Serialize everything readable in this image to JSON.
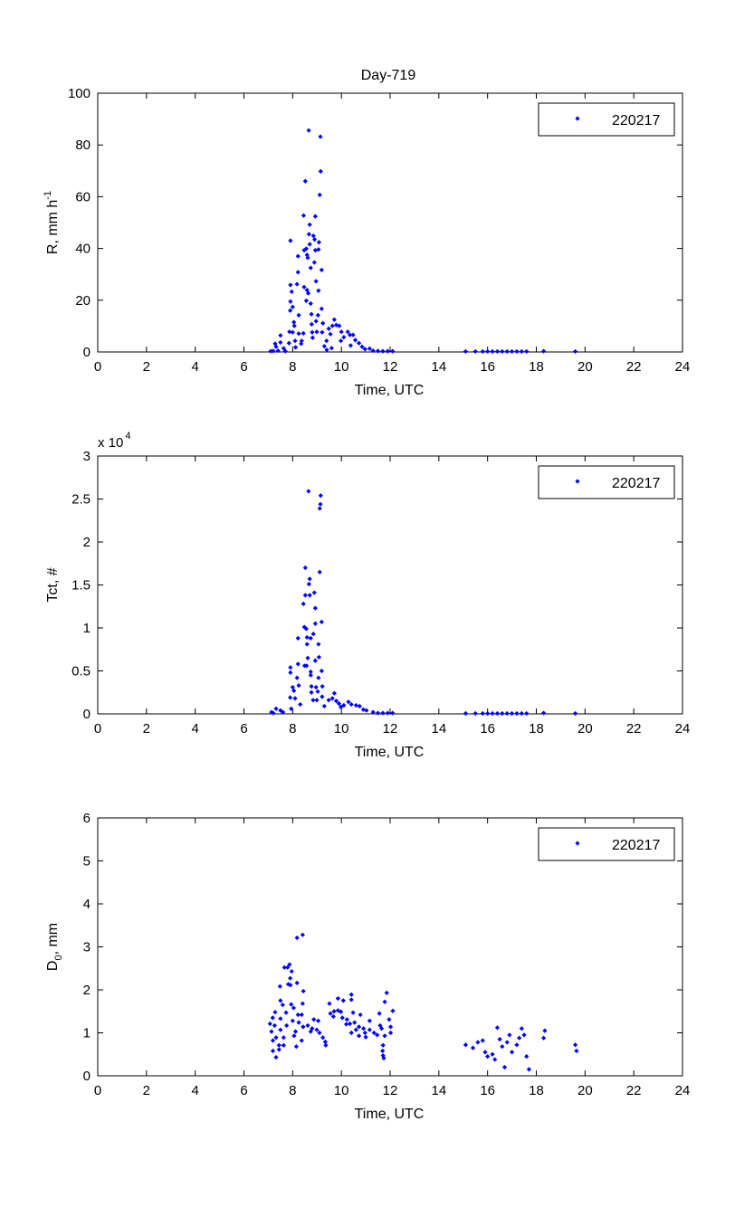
{
  "title": "Day-719",
  "marker_color": "#0000ff",
  "chart_data": [
    {
      "type": "scatter",
      "title": "Day-719",
      "xlabel": "Time, UTC",
      "ylabel": "R, mm h",
      "ylabel_sup": "-1",
      "xlim": [
        0,
        24
      ],
      "ylim": [
        0,
        100
      ],
      "xticks": [
        "0",
        "2",
        "4",
        "6",
        "8",
        "10",
        "12",
        "14",
        "16",
        "18",
        "20",
        "22",
        "24"
      ],
      "yticks": [
        "0",
        "20",
        "40",
        "60",
        "80",
        "100"
      ],
      "legend": {
        "label": "220217",
        "placement": "top-right"
      },
      "points": [
        [
          8.66,
          85.6
        ],
        [
          9.14,
          83.2
        ],
        [
          9.15,
          69.8
        ],
        [
          8.52,
          66
        ],
        [
          9.11,
          60.7
        ],
        [
          8.45,
          52.7
        ],
        [
          8.93,
          52.4
        ],
        [
          8.7,
          49.2
        ],
        [
          8.67,
          45.5
        ],
        [
          8.85,
          44.9
        ],
        [
          8.9,
          43.5
        ],
        [
          9.08,
          42.4
        ],
        [
          7.91,
          43
        ],
        [
          8.56,
          39.9
        ],
        [
          8.47,
          39.3
        ],
        [
          8.7,
          41.6
        ],
        [
          8.93,
          39.3
        ],
        [
          9.06,
          39.6
        ],
        [
          8.59,
          37.5
        ],
        [
          8.62,
          36.4
        ],
        [
          8.22,
          37
        ],
        [
          8.89,
          34.6
        ],
        [
          8.74,
          32.5
        ],
        [
          9.19,
          31.7
        ],
        [
          8.22,
          30.8
        ],
        [
          8.96,
          27.3
        ],
        [
          7.91,
          25.9
        ],
        [
          8.18,
          26.2
        ],
        [
          8.47,
          25.1
        ],
        [
          8.59,
          23.9
        ],
        [
          7.96,
          23.3
        ],
        [
          9.06,
          23.7
        ],
        [
          8.64,
          22.7
        ],
        [
          7.91,
          19.5
        ],
        [
          8.56,
          19.8
        ],
        [
          8,
          17.4
        ],
        [
          8.74,
          18.7
        ],
        [
          7.9,
          16
        ],
        [
          9.19,
          16.7
        ],
        [
          8.25,
          14.2
        ],
        [
          8.77,
          14.6
        ],
        [
          9.04,
          14.2
        ],
        [
          8.96,
          11.9
        ],
        [
          8.05,
          11.5
        ],
        [
          8.07,
          10.1
        ],
        [
          8.78,
          10.7
        ],
        [
          9.24,
          11.1
        ],
        [
          9.71,
          12.5
        ],
        [
          7.87,
          7.8
        ],
        [
          8,
          7.6
        ],
        [
          8.25,
          7.1
        ],
        [
          8.44,
          7.2
        ],
        [
          8.8,
          7.6
        ],
        [
          8.99,
          7.8
        ],
        [
          9.21,
          7.6
        ],
        [
          9.48,
          9
        ],
        [
          9.63,
          10.1
        ],
        [
          9.79,
          10.4
        ],
        [
          9.91,
          10.1
        ],
        [
          10,
          7.8
        ],
        [
          10.26,
          7.8
        ],
        [
          10.48,
          6.6
        ],
        [
          10.35,
          6.6
        ],
        [
          9.55,
          6.9
        ],
        [
          7.5,
          6.4
        ],
        [
          8.82,
          5.5
        ],
        [
          10.1,
          5.7
        ],
        [
          10.57,
          4.6
        ],
        [
          9.98,
          4.3
        ],
        [
          8.1,
          4.3
        ],
        [
          8.37,
          4.3
        ],
        [
          9.39,
          4.3
        ],
        [
          10.72,
          3.4
        ],
        [
          10.38,
          2.5
        ],
        [
          9.3,
          2.2
        ],
        [
          7.5,
          3.7
        ],
        [
          7.28,
          3.2
        ],
        [
          8.35,
          3.2
        ],
        [
          7.85,
          3.4
        ],
        [
          8.12,
          1.8
        ],
        [
          7.63,
          1.4
        ],
        [
          7.32,
          2
        ],
        [
          10.85,
          2
        ],
        [
          10.97,
          1.1
        ],
        [
          11.16,
          1.3
        ],
        [
          7.1,
          0.3
        ],
        [
          7.2,
          0.4
        ],
        [
          7.4,
          0.5
        ],
        [
          7.7,
          0.3
        ],
        [
          9.4,
          0.8
        ],
        [
          9.6,
          1.5
        ],
        [
          11.3,
          0.5
        ],
        [
          11.5,
          0.4
        ],
        [
          11.7,
          0.3
        ],
        [
          11.9,
          0.3
        ],
        [
          12.1,
          0.3
        ],
        [
          15.1,
          0.2
        ],
        [
          15.5,
          0.2
        ],
        [
          15.8,
          0.2
        ],
        [
          16,
          0.2
        ],
        [
          16.2,
          0.2
        ],
        [
          16.4,
          0.2
        ],
        [
          16.6,
          0.2
        ],
        [
          16.8,
          0.2
        ],
        [
          17,
          0.2
        ],
        [
          17.2,
          0.2
        ],
        [
          17.4,
          0.2
        ],
        [
          17.6,
          0.2
        ],
        [
          18.3,
          0.3
        ],
        [
          19.6,
          0.2
        ]
      ]
    },
    {
      "type": "scatter",
      "xlabel": "Time, UTC",
      "ylabel": "Tct, #",
      "y_multiplier": "x 10",
      "y_multiplier_exp": "4",
      "xlim": [
        0,
        24
      ],
      "ylim": [
        0,
        3
      ],
      "xticks": [
        "0",
        "2",
        "4",
        "6",
        "8",
        "10",
        "12",
        "14",
        "16",
        "18",
        "20",
        "22",
        "24"
      ],
      "yticks": [
        "0",
        "0.5",
        "1",
        "1.5",
        "2",
        "2.5",
        "3"
      ],
      "legend": {
        "label": "220217",
        "placement": "top-right"
      },
      "points": [
        [
          8.65,
          2.59
        ],
        [
          9.15,
          2.54
        ],
        [
          9.14,
          2.44
        ],
        [
          9.11,
          2.39
        ],
        [
          8.52,
          1.7
        ],
        [
          9.11,
          1.65
        ],
        [
          8.7,
          1.57
        ],
        [
          8.67,
          1.51
        ],
        [
          8.52,
          1.38
        ],
        [
          8.7,
          1.38
        ],
        [
          8.89,
          1.41
        ],
        [
          8.44,
          1.28
        ],
        [
          8.93,
          1.23
        ],
        [
          8.48,
          1.01
        ],
        [
          8.56,
          0.99
        ],
        [
          9.19,
          1.07
        ],
        [
          8.93,
          1.05
        ],
        [
          8.22,
          0.88
        ],
        [
          8.59,
          0.89
        ],
        [
          8.74,
          0.88
        ],
        [
          8.85,
          0.93
        ],
        [
          8.59,
          0.81
        ],
        [
          9.06,
          0.81
        ],
        [
          8.62,
          0.65
        ],
        [
          9.08,
          0.66
        ],
        [
          8.93,
          0.62
        ],
        [
          7.91,
          0.54
        ],
        [
          8.22,
          0.58
        ],
        [
          8.49,
          0.56
        ],
        [
          8.57,
          0.56
        ],
        [
          7.91,
          0.48
        ],
        [
          9.19,
          0.5
        ],
        [
          8.74,
          0.49
        ],
        [
          8.74,
          0.45
        ],
        [
          8.18,
          0.42
        ],
        [
          9.06,
          0.42
        ],
        [
          8,
          0.31
        ],
        [
          8.25,
          0.33
        ],
        [
          8.77,
          0.32
        ],
        [
          8.96,
          0.31
        ],
        [
          9.22,
          0.32
        ],
        [
          8.05,
          0.27
        ],
        [
          8.77,
          0.25
        ],
        [
          9.03,
          0.26
        ],
        [
          9.21,
          0.2
        ],
        [
          9.71,
          0.24
        ],
        [
          7.9,
          0.19
        ],
        [
          8.1,
          0.18
        ],
        [
          8.84,
          0.16
        ],
        [
          8.99,
          0.16
        ],
        [
          9.48,
          0.16
        ],
        [
          9.63,
          0.18
        ],
        [
          9.79,
          0.15
        ],
        [
          10.29,
          0.14
        ],
        [
          10.41,
          0.11
        ],
        [
          10.6,
          0.1
        ],
        [
          10.75,
          0.09
        ],
        [
          9.3,
          0.09
        ],
        [
          8.31,
          0.11
        ],
        [
          9.98,
          0.08
        ],
        [
          7.32,
          0.06
        ],
        [
          7.5,
          0.04
        ],
        [
          7.94,
          0.06
        ],
        [
          11.03,
          0.04
        ],
        [
          7.13,
          0.02
        ],
        [
          7.2,
          0.01
        ],
        [
          7.6,
          0.02
        ],
        [
          9.9,
          0.12
        ],
        [
          10.1,
          0.1
        ],
        [
          10.9,
          0.05
        ],
        [
          11.3,
          0.02
        ],
        [
          11.5,
          0.01
        ],
        [
          11.7,
          0.01
        ],
        [
          11.9,
          0.01
        ],
        [
          12.1,
          0.01
        ],
        [
          15.1,
          0.005
        ],
        [
          15.5,
          0.005
        ],
        [
          15.8,
          0.005
        ],
        [
          16,
          0.005
        ],
        [
          16.2,
          0.005
        ],
        [
          16.4,
          0.005
        ],
        [
          16.6,
          0.005
        ],
        [
          16.8,
          0.005
        ],
        [
          17,
          0.005
        ],
        [
          17.2,
          0.005
        ],
        [
          17.4,
          0.005
        ],
        [
          17.6,
          0.005
        ],
        [
          18.3,
          0.01
        ],
        [
          19.6,
          0.005
        ]
      ]
    },
    {
      "type": "scatter",
      "xlabel": "Time, UTC",
      "ylabel": "D",
      "ylabel_sub": "0",
      "ylabel_suffix": ", mm",
      "xlim": [
        0,
        24
      ],
      "ylim": [
        0,
        6
      ],
      "xticks": [
        "0",
        "2",
        "4",
        "6",
        "8",
        "10",
        "12",
        "14",
        "16",
        "18",
        "20",
        "22",
        "24"
      ],
      "yticks": [
        "0",
        "1",
        "2",
        "3",
        "4",
        "5",
        "6"
      ],
      "legend": {
        "label": "220217",
        "placement": "top-right"
      },
      "points": [
        [
          8.18,
          3.21
        ],
        [
          8.41,
          3.28
        ],
        [
          7.66,
          2.52
        ],
        [
          7.87,
          2.59
        ],
        [
          7.79,
          2.52
        ],
        [
          7.96,
          2.43
        ],
        [
          7.9,
          2.27
        ],
        [
          7.82,
          2.13
        ],
        [
          7.91,
          2.11
        ],
        [
          7.48,
          2.08
        ],
        [
          8.18,
          2.16
        ],
        [
          8.44,
          1.97
        ],
        [
          7.5,
          1.75
        ],
        [
          7.59,
          1.65
        ],
        [
          7.94,
          1.66
        ],
        [
          8.04,
          1.58
        ],
        [
          8.41,
          1.68
        ],
        [
          7.28,
          1.48
        ],
        [
          7.73,
          1.47
        ],
        [
          8.22,
          1.42
        ],
        [
          8.37,
          1.42
        ],
        [
          7.18,
          1.35
        ],
        [
          7.5,
          1.33
        ],
        [
          8,
          1.28
        ],
        [
          7.07,
          1.21
        ],
        [
          7.26,
          1.17
        ],
        [
          7.75,
          1.17
        ],
        [
          8.25,
          1.24
        ],
        [
          8.62,
          1.17
        ],
        [
          8.87,
          1.31
        ],
        [
          9.05,
          1.28
        ],
        [
          7.13,
          1.03
        ],
        [
          7.5,
          1.07
        ],
        [
          8.12,
          1.03
        ],
        [
          8.43,
          1.14
        ],
        [
          8.74,
          1.03
        ],
        [
          8.99,
          1.07
        ],
        [
          7.32,
          0.89
        ],
        [
          7.63,
          0.89
        ],
        [
          8.06,
          0.93
        ],
        [
          9.24,
          0.89
        ],
        [
          9.34,
          0.79
        ],
        [
          7.19,
          0.82
        ],
        [
          7.44,
          0.71
        ],
        [
          7.63,
          0.71
        ],
        [
          8.15,
          0.68
        ],
        [
          8.37,
          0.82
        ],
        [
          9.36,
          0.71
        ],
        [
          7.19,
          0.58
        ],
        [
          7.44,
          0.61
        ],
        [
          7.32,
          0.43
        ],
        [
          9.51,
          1.68
        ],
        [
          9.86,
          1.8
        ],
        [
          10.08,
          1.75
        ],
        [
          10.41,
          1.89
        ],
        [
          10.41,
          1.77
        ],
        [
          9.55,
          1.45
        ],
        [
          9.67,
          1.38
        ],
        [
          9.86,
          1.52
        ],
        [
          9.98,
          1.49
        ],
        [
          10.04,
          1.35
        ],
        [
          10.23,
          1.31
        ],
        [
          10.48,
          1.47
        ],
        [
          10.78,
          1.42
        ],
        [
          10.35,
          1.21
        ],
        [
          10.54,
          1.24
        ],
        [
          10.72,
          1.14
        ],
        [
          10.91,
          1.1
        ],
        [
          11.16,
          1.28
        ],
        [
          10.97,
          1
        ],
        [
          10.6,
          1.07
        ],
        [
          10.41,
          1
        ],
        [
          10.72,
          0.93
        ],
        [
          11.16,
          1.07
        ],
        [
          11.34,
          1
        ],
        [
          11.47,
          0.95
        ],
        [
          11.59,
          1.17
        ],
        [
          11.56,
          1.45
        ],
        [
          11.78,
          1.72
        ],
        [
          11.86,
          1.93
        ],
        [
          12.11,
          1.51
        ],
        [
          11.96,
          1.31
        ],
        [
          12.02,
          1.14
        ],
        [
          11.78,
          0.93
        ],
        [
          11.71,
          0.71
        ],
        [
          11.69,
          0.58
        ],
        [
          11.71,
          0.47
        ],
        [
          11.74,
          0.41
        ],
        [
          11.65,
          1.1
        ],
        [
          12.02,
          1
        ],
        [
          8.8,
          1.1
        ],
        [
          9.1,
          1.0
        ],
        [
          9.7,
          1.5
        ],
        [
          10.2,
          1.2
        ],
        [
          11.0,
          0.9
        ],
        [
          15.1,
          0.72
        ],
        [
          15.4,
          0.65
        ],
        [
          15.6,
          0.78
        ],
        [
          15.8,
          0.82
        ],
        [
          15.9,
          0.55
        ],
        [
          16,
          0.45
        ],
        [
          16.2,
          0.5
        ],
        [
          16.3,
          0.38
        ],
        [
          16.4,
          1.12
        ],
        [
          16.5,
          0.85
        ],
        [
          16.6,
          0.68
        ],
        [
          16.7,
          0.2
        ],
        [
          16.8,
          0.78
        ],
        [
          16.9,
          0.95
        ],
        [
          17,
          0.55
        ],
        [
          17.2,
          0.72
        ],
        [
          17.3,
          0.88
        ],
        [
          17.4,
          1.1
        ],
        [
          17.5,
          0.95
        ],
        [
          17.6,
          0.45
        ],
        [
          17.7,
          0.15
        ],
        [
          18.3,
          0.88
        ],
        [
          18.35,
          1.05
        ],
        [
          19.6,
          0.72
        ],
        [
          19.65,
          0.58
        ]
      ]
    }
  ]
}
